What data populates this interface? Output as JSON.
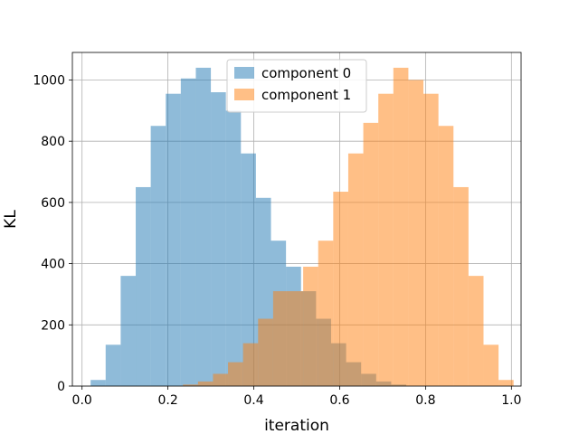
{
  "chart_data": {
    "type": "bar",
    "title": "",
    "xlabel": "iteration",
    "ylabel": "KL",
    "xlim": [
      -0.0225,
      1.0225
    ],
    "ylim": [
      0,
      1090
    ],
    "x_ticks": [
      0.0,
      0.2,
      0.4,
      0.6,
      0.8,
      1.0
    ],
    "x_tick_labels": [
      "0.0",
      "0.2",
      "0.4",
      "0.6",
      "0.8",
      "1.0"
    ],
    "y_ticks": [
      0,
      200,
      400,
      600,
      800,
      1000
    ],
    "y_tick_labels": [
      "0",
      "200",
      "400",
      "600",
      "800",
      "1000"
    ],
    "grid": true,
    "legend_position": "upper center",
    "series": [
      {
        "name": "component 0",
        "color": "#1f77b4",
        "alpha": 0.5,
        "bins": [
          [
            0.02,
            0.055,
            20
          ],
          [
            0.055,
            0.09,
            135
          ],
          [
            0.09,
            0.125,
            360
          ],
          [
            0.125,
            0.16,
            650
          ],
          [
            0.16,
            0.195,
            850
          ],
          [
            0.195,
            0.23,
            955
          ],
          [
            0.23,
            0.265,
            1005
          ],
          [
            0.265,
            0.3,
            1040
          ],
          [
            0.3,
            0.335,
            960
          ],
          [
            0.335,
            0.37,
            900
          ],
          [
            0.37,
            0.405,
            760
          ],
          [
            0.405,
            0.44,
            615
          ],
          [
            0.44,
            0.475,
            475
          ],
          [
            0.475,
            0.51,
            390
          ],
          [
            0.51,
            0.545,
            310
          ],
          [
            0.545,
            0.58,
            220
          ],
          [
            0.58,
            0.615,
            140
          ],
          [
            0.615,
            0.65,
            78
          ],
          [
            0.65,
            0.685,
            40
          ],
          [
            0.685,
            0.72,
            15
          ],
          [
            0.72,
            0.755,
            5
          ]
        ]
      },
      {
        "name": "component 1",
        "color": "#ff7f0e",
        "alpha": 0.5,
        "bins": [
          [
            0.235,
            0.27,
            5
          ],
          [
            0.27,
            0.305,
            15
          ],
          [
            0.305,
            0.34,
            40
          ],
          [
            0.34,
            0.375,
            78
          ],
          [
            0.375,
            0.41,
            140
          ],
          [
            0.41,
            0.445,
            220
          ],
          [
            0.445,
            0.48,
            310
          ],
          [
            0.48,
            0.515,
            310
          ],
          [
            0.515,
            0.55,
            390
          ],
          [
            0.55,
            0.585,
            475
          ],
          [
            0.585,
            0.62,
            635
          ],
          [
            0.62,
            0.655,
            760
          ],
          [
            0.655,
            0.69,
            860
          ],
          [
            0.69,
            0.725,
            955
          ],
          [
            0.725,
            0.76,
            1040
          ],
          [
            0.76,
            0.795,
            1000
          ],
          [
            0.795,
            0.83,
            955
          ],
          [
            0.83,
            0.865,
            850
          ],
          [
            0.865,
            0.9,
            650
          ],
          [
            0.9,
            0.935,
            360
          ],
          [
            0.935,
            0.97,
            135
          ],
          [
            0.97,
            1.005,
            20
          ]
        ]
      }
    ]
  }
}
